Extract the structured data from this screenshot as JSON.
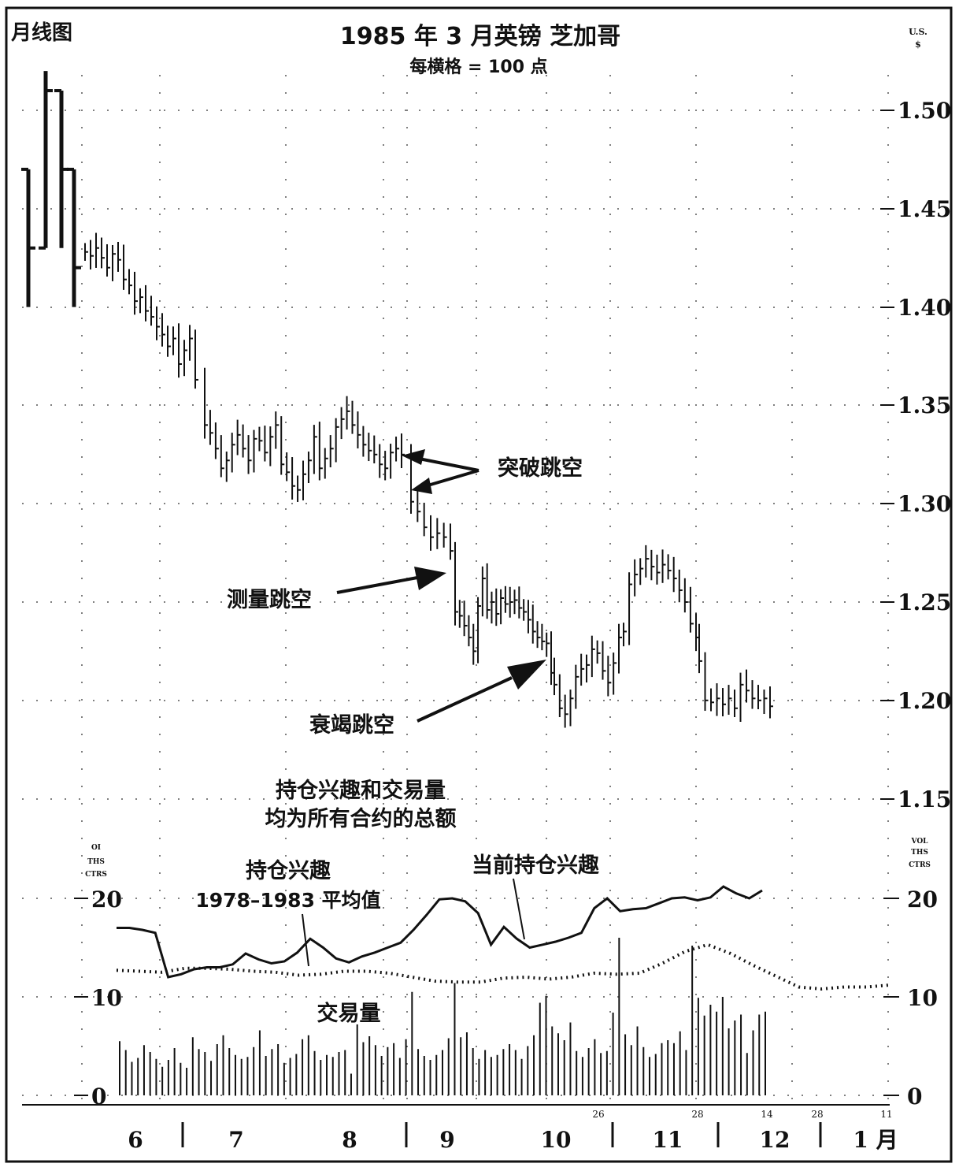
{
  "chart_data": {
    "type": "bar",
    "corner_label": "月线图",
    "title": "1985 年 3 月英镑  芝加哥",
    "subtitle": "每横格 = 100 点",
    "price_unit_label": [
      "U.S.",
      "$"
    ],
    "price_axis": {
      "ticks": [
        "1.50",
        "1.45",
        "1.40",
        "1.35",
        "1.30",
        "1.25",
        "1.20",
        "1.15"
      ],
      "ylim": [
        1.095,
        1.57
      ]
    },
    "monthly_bars": [
      {
        "high": 1.47,
        "low": 1.4,
        "open": 1.47,
        "close": 1.43
      },
      {
        "high": 1.52,
        "low": 1.43,
        "open": 1.43,
        "close": 1.51
      },
      {
        "high": 1.51,
        "low": 1.43,
        "open": 1.51,
        "close": 1.47
      },
      {
        "high": 1.47,
        "low": 1.4,
        "open": 1.47,
        "close": 1.42
      }
    ],
    "daily_closes": [
      1.428,
      1.426,
      1.43,
      1.425,
      1.42,
      1.427,
      1.424,
      1.414,
      1.411,
      1.403,
      1.405,
      1.398,
      1.395,
      1.39,
      1.386,
      1.38,
      1.384,
      1.371,
      1.378,
      1.384,
      1.363,
      1.34,
      1.336,
      1.328,
      1.318,
      1.322,
      1.33,
      1.335,
      1.328,
      1.322,
      1.333,
      1.332,
      1.326,
      1.334,
      1.34,
      1.32,
      1.316,
      1.309,
      1.307,
      1.315,
      1.322,
      1.334,
      1.318,
      1.323,
      1.328,
      1.339,
      1.343,
      1.347,
      1.34,
      1.335,
      1.33,
      1.327,
      1.325,
      1.32,
      1.318,
      1.326,
      1.328,
      1.325,
      1.301,
      1.296,
      1.288,
      1.283,
      1.285,
      1.283,
      1.276,
      1.245,
      1.243,
      1.238,
      1.232,
      1.225,
      1.248,
      1.262,
      1.246,
      1.25,
      1.244,
      1.252,
      1.249,
      1.25,
      1.251,
      1.247,
      1.245,
      1.241,
      1.235,
      1.232,
      1.23,
      1.229,
      1.214,
      1.208,
      1.196,
      1.193,
      1.201,
      1.212,
      1.216,
      1.218,
      1.226,
      1.224,
      1.215,
      1.209,
      1.219,
      1.232,
      1.235,
      1.259,
      1.264,
      1.267,
      1.272,
      1.268,
      1.265,
      1.269,
      1.266,
      1.262,
      1.256,
      1.25,
      1.239,
      1.232,
      1.22,
      1.2,
      1.199,
      1.201,
      1.198,
      1.201,
      1.196,
      1.208,
      1.205,
      1.201,
      1.2,
      1.201,
      1.197,
      1.192
    ],
    "annotations": [
      {
        "text": "突破跳空"
      },
      {
        "text": "测量跳空"
      },
      {
        "text": "衰竭跳空"
      }
    ],
    "lower_panel": {
      "note_lines": [
        "持仓兴趣和交易量",
        "均为所有合约的总额"
      ],
      "left_unit_label": [
        "OI",
        "THS",
        "CTRS"
      ],
      "right_unit_label": [
        "VOL",
        "THS",
        "CTRS"
      ],
      "axis_ticks": [
        "20",
        "10",
        "0"
      ],
      "ylim": [
        0,
        22
      ],
      "average_label_lines": [
        "持仓兴趣",
        "1978–1983 平均值"
      ],
      "current_label": "当前持仓兴趣",
      "volume_label": "交易量",
      "series": [
        {
          "name": "当前持仓兴趣",
          "values": [
            17.0,
            17.0,
            16.8,
            16.5,
            12.0,
            12.3,
            12.8,
            13.0,
            13.0,
            13.3,
            14.4,
            13.8,
            13.4,
            13.6,
            14.5,
            15.9,
            15.0,
            13.9,
            13.5,
            14.1,
            14.5,
            15.0,
            15.5,
            16.8,
            18.3,
            19.9,
            20.0,
            19.7,
            18.5,
            15.3,
            17.1,
            15.9,
            15.0,
            15.3,
            15.6,
            16.0,
            16.5,
            19.0,
            20.0,
            18.7,
            18.9,
            19.0,
            19.5,
            20.0,
            20.1,
            19.8,
            20.1,
            21.2,
            20.5,
            20.0,
            20.8
          ]
        },
        {
          "name": "持仓兴趣 1978–1983 平均值",
          "values": [
            12.7,
            12.6,
            12.5,
            12.9,
            12.9,
            12.8,
            12.6,
            12.5,
            12.2,
            12.3,
            12.6,
            12.6,
            12.4,
            12.0,
            11.6,
            11.5,
            11.5,
            11.9,
            12.0,
            11.8,
            12.0,
            12.4,
            12.3,
            12.4,
            13.4,
            14.6,
            15.3,
            14.4,
            13.2,
            12.1,
            11.0,
            10.8,
            11.0,
            11.0,
            11.2
          ]
        }
      ],
      "volume": [
        5.5,
        4.6,
        3.4,
        3.8,
        5.1,
        4.4,
        3.7,
        2.9,
        3.6,
        4.8,
        3.3,
        2.8,
        5.9,
        4.7,
        4.4,
        3.5,
        5.2,
        6.1,
        4.8,
        4.1,
        3.7,
        3.9,
        4.9,
        6.6,
        4.0,
        4.7,
        5.2,
        3.3,
        3.8,
        4.2,
        5.7,
        6.1,
        4.5,
        3.6,
        4.1,
        3.9,
        4.4,
        4.6,
        2.2,
        7.2,
        5.4,
        6.0,
        5.1,
        4.0,
        4.9,
        5.3,
        3.8,
        5.7,
        10.5,
        4.7,
        4.0,
        3.6,
        4.1,
        4.6,
        5.8,
        11.4,
        5.9,
        6.4,
        4.8,
        3.7,
        4.6,
        3.9,
        4.1,
        4.7,
        5.2,
        4.6,
        3.7,
        5.0,
        6.1,
        9.4,
        10.1,
        7.0,
        6.3,
        5.6,
        7.4,
        4.5,
        3.9,
        4.8,
        5.7,
        4.3,
        4.5,
        8.4,
        16.0,
        6.2,
        5.1,
        7.0,
        4.9,
        3.9,
        4.2,
        5.3,
        5.6,
        5.3,
        6.5,
        4.6,
        15.2,
        9.9,
        8.1,
        9.2,
        8.5,
        10.0,
        6.8,
        7.6,
        8.2,
        4.3,
        6.6,
        8.2,
        8.5
      ]
    },
    "x_axis": {
      "month_labels": [
        "6",
        "7",
        "8",
        "9",
        "10",
        "11",
        "12",
        "1 月"
      ],
      "small_labels": [
        "26",
        "28",
        "14",
        "28",
        "11"
      ]
    }
  }
}
